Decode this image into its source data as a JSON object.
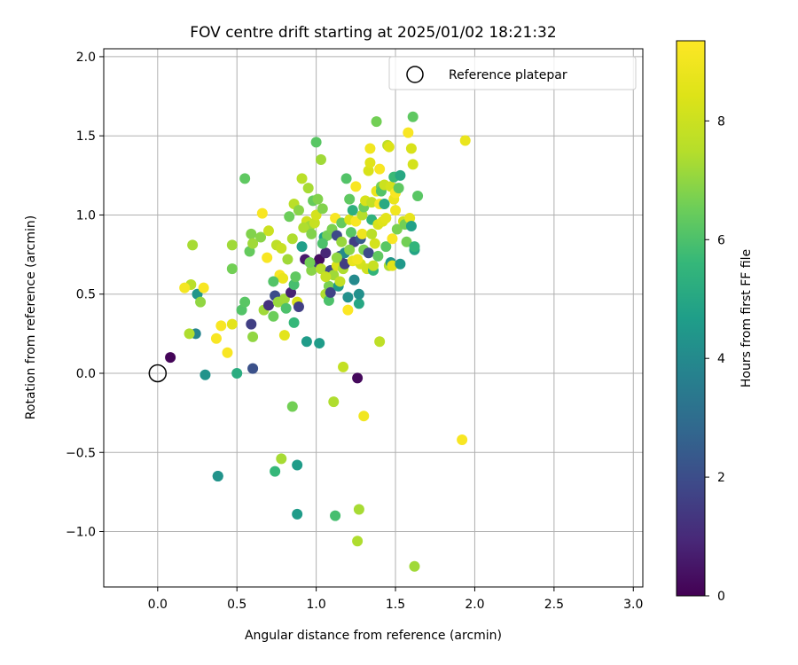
{
  "chart_data": {
    "type": "scatter",
    "title": "FOV centre drift starting at 2025/01/02 18:21:32",
    "xlabel": "Angular distance from reference (arcmin)",
    "ylabel": "Rotation from reference (arcmin)",
    "xlim": [
      -0.34,
      3.06
    ],
    "ylim": [
      -1.35,
      2.05
    ],
    "xticks": [
      0.0,
      0.5,
      1.0,
      1.5,
      2.0,
      2.5,
      3.0
    ],
    "xtick_labels": [
      "0.0",
      "0.5",
      "1.0",
      "1.5",
      "2.0",
      "2.5",
      "3.0"
    ],
    "yticks": [
      -1.0,
      -0.5,
      0.0,
      0.5,
      1.0,
      1.5,
      2.0
    ],
    "ytick_labels": [
      "−1.0",
      "−0.5",
      "0.0",
      "0.5",
      "1.0",
      "1.5",
      "2.0"
    ],
    "grid": true,
    "legend": {
      "placement": "top-right",
      "entries": [
        "Reference platepar"
      ]
    },
    "reference_point": {
      "x": 0.0,
      "y": 0.0
    },
    "colorbar": {
      "label": "Hours from first FF file",
      "colormap": "viridis",
      "range": [
        0,
        9.35
      ],
      "ticks": [
        0,
        2,
        4,
        6,
        8
      ],
      "tick_labels": [
        "0",
        "2",
        "4",
        "6",
        "8"
      ]
    },
    "points": [
      {
        "x": 0.08,
        "y": 0.1,
        "c": 0.1
      },
      {
        "x": 0.24,
        "y": 0.25,
        "c": 3.8
      },
      {
        "x": 0.3,
        "y": -0.01,
        "c": 4.3
      },
      {
        "x": 0.25,
        "y": 0.5,
        "c": 4.4
      },
      {
        "x": 0.38,
        "y": -0.65,
        "c": 4.6
      },
      {
        "x": 0.5,
        "y": 0.0,
        "c": 5.2
      },
      {
        "x": 0.6,
        "y": 0.03,
        "c": 2.1
      },
      {
        "x": 0.59,
        "y": 0.31,
        "c": 1.6
      },
      {
        "x": 0.2,
        "y": 0.25,
        "c": 7.4
      },
      {
        "x": 0.21,
        "y": 0.56,
        "c": 7.6
      },
      {
        "x": 0.22,
        "y": 0.81,
        "c": 7.3
      },
      {
        "x": 0.27,
        "y": 0.45,
        "c": 7.0
      },
      {
        "x": 0.29,
        "y": 0.54,
        "c": 9.2
      },
      {
        "x": 0.17,
        "y": 0.54,
        "c": 9.1
      },
      {
        "x": 0.37,
        "y": 0.22,
        "c": 9.2
      },
      {
        "x": 0.4,
        "y": 0.3,
        "c": 9.2
      },
      {
        "x": 0.44,
        "y": 0.13,
        "c": 9.2
      },
      {
        "x": 0.47,
        "y": 0.31,
        "c": 8.6
      },
      {
        "x": 0.47,
        "y": 0.66,
        "c": 6.6
      },
      {
        "x": 0.47,
        "y": 0.81,
        "c": 7.2
      },
      {
        "x": 0.53,
        "y": 0.4,
        "c": 6.1
      },
      {
        "x": 0.55,
        "y": 0.45,
        "c": 6.2
      },
      {
        "x": 0.55,
        "y": 1.23,
        "c": 6.3
      },
      {
        "x": 0.58,
        "y": 0.77,
        "c": 6.4
      },
      {
        "x": 0.59,
        "y": 0.88,
        "c": 6.8
      },
      {
        "x": 0.6,
        "y": 0.23,
        "c": 7.0
      },
      {
        "x": 0.6,
        "y": 0.82,
        "c": 7.2
      },
      {
        "x": 0.65,
        "y": 0.86,
        "c": 6.9
      },
      {
        "x": 0.66,
        "y": 1.01,
        "c": 9.2
      },
      {
        "x": 0.67,
        "y": 0.4,
        "c": 7.2
      },
      {
        "x": 0.69,
        "y": 0.73,
        "c": 9.2
      },
      {
        "x": 0.7,
        "y": 0.9,
        "c": 8.0
      },
      {
        "x": 0.7,
        "y": 0.43,
        "c": 1.2
      },
      {
        "x": 0.73,
        "y": 0.36,
        "c": 6.5
      },
      {
        "x": 0.74,
        "y": 0.49,
        "c": 2.0
      },
      {
        "x": 0.75,
        "y": 0.81,
        "c": 7.7
      },
      {
        "x": 0.76,
        "y": 0.45,
        "c": 7.1
      },
      {
        "x": 0.77,
        "y": 0.62,
        "c": 9.2
      },
      {
        "x": 0.78,
        "y": 0.79,
        "c": 7.9
      },
      {
        "x": 0.79,
        "y": 0.6,
        "c": 8.8
      },
      {
        "x": 0.8,
        "y": 0.24,
        "c": 8.6
      },
      {
        "x": 0.8,
        "y": 0.47,
        "c": 7.2
      },
      {
        "x": 0.81,
        "y": 0.41,
        "c": 6.0
      },
      {
        "x": 0.82,
        "y": 0.72,
        "c": 7.2
      },
      {
        "x": 0.83,
        "y": 0.99,
        "c": 6.5
      },
      {
        "x": 0.84,
        "y": 0.51,
        "c": 0.8
      },
      {
        "x": 0.85,
        "y": 0.85,
        "c": 7.4
      },
      {
        "x": 0.86,
        "y": 0.56,
        "c": 5.9
      },
      {
        "x": 0.86,
        "y": 0.32,
        "c": 5.6
      },
      {
        "x": 0.86,
        "y": 1.07,
        "c": 7.6
      },
      {
        "x": 0.87,
        "y": 0.61,
        "c": 6.3
      },
      {
        "x": 0.88,
        "y": 0.45,
        "c": 8.3
      },
      {
        "x": 0.89,
        "y": 0.42,
        "c": 1.6
      },
      {
        "x": 0.89,
        "y": 1.03,
        "c": 6.9
      },
      {
        "x": 0.91,
        "y": 0.8,
        "c": 4.7
      },
      {
        "x": 0.91,
        "y": 1.23,
        "c": 7.6
      },
      {
        "x": 0.93,
        "y": 0.72,
        "c": 0.6
      },
      {
        "x": 0.94,
        "y": 0.96,
        "c": 8.1
      },
      {
        "x": 0.94,
        "y": 0.2,
        "c": 4.6
      },
      {
        "x": 0.95,
        "y": 1.17,
        "c": 7.3
      },
      {
        "x": 0.96,
        "y": 0.93,
        "c": 7.2
      },
      {
        "x": 0.97,
        "y": 0.65,
        "c": 6.9
      },
      {
        "x": 0.98,
        "y": 1.09,
        "c": 6.4
      },
      {
        "x": 0.99,
        "y": 0.95,
        "c": 7.9
      },
      {
        "x": 1.0,
        "y": 1.46,
        "c": 6.2
      },
      {
        "x": 1.0,
        "y": 1.0,
        "c": 8.2
      },
      {
        "x": 1.01,
        "y": 0.7,
        "c": 1.5
      },
      {
        "x": 1.01,
        "y": 1.1,
        "c": 6.8
      },
      {
        "x": 1.02,
        "y": 0.72,
        "c": 0.3
      },
      {
        "x": 1.02,
        "y": 0.19,
        "c": 4.6
      },
      {
        "x": 1.03,
        "y": 1.35,
        "c": 7.2
      },
      {
        "x": 1.03,
        "y": 0.66,
        "c": 7.5
      },
      {
        "x": 1.04,
        "y": 1.04,
        "c": 6.8
      },
      {
        "x": 1.05,
        "y": 0.86,
        "c": 4.8
      },
      {
        "x": 1.06,
        "y": 0.76,
        "c": 0.9
      },
      {
        "x": 1.06,
        "y": 0.5,
        "c": 7.4
      },
      {
        "x": 1.07,
        "y": 0.87,
        "c": 6.6
      },
      {
        "x": 1.08,
        "y": 0.46,
        "c": 6.0
      },
      {
        "x": 1.08,
        "y": 0.55,
        "c": 6.7
      },
      {
        "x": 1.09,
        "y": 0.65,
        "c": 1.8
      },
      {
        "x": 1.09,
        "y": 0.51,
        "c": 1.7
      },
      {
        "x": 1.1,
        "y": 0.91,
        "c": 6.7
      },
      {
        "x": 1.11,
        "y": -0.18,
        "c": 7.4
      },
      {
        "x": 1.11,
        "y": 0.62,
        "c": 7.2
      },
      {
        "x": 1.12,
        "y": -0.9,
        "c": 5.9
      },
      {
        "x": 1.12,
        "y": 0.98,
        "c": 9.2
      },
      {
        "x": 1.13,
        "y": 0.68,
        "c": 8.3
      },
      {
        "x": 1.13,
        "y": 0.87,
        "c": 1.9
      },
      {
        "x": 1.14,
        "y": 0.55,
        "c": 4.5
      },
      {
        "x": 1.15,
        "y": 0.74,
        "c": 2.1
      },
      {
        "x": 1.15,
        "y": 0.58,
        "c": 7.8
      },
      {
        "x": 1.16,
        "y": 0.95,
        "c": 6.4
      },
      {
        "x": 1.17,
        "y": 0.04,
        "c": 7.8
      },
      {
        "x": 1.17,
        "y": 0.66,
        "c": 7.4
      },
      {
        "x": 1.18,
        "y": 0.69,
        "c": 1.5
      },
      {
        "x": 1.18,
        "y": 0.76,
        "c": 4.0
      },
      {
        "x": 1.19,
        "y": 1.23,
        "c": 6.1
      },
      {
        "x": 1.2,
        "y": 0.48,
        "c": 4.2
      },
      {
        "x": 1.2,
        "y": 0.4,
        "c": 9.3
      },
      {
        "x": 1.21,
        "y": 0.97,
        "c": 8.4
      },
      {
        "x": 1.21,
        "y": 1.1,
        "c": 6.3
      },
      {
        "x": 1.22,
        "y": 0.89,
        "c": 6.2
      },
      {
        "x": 1.23,
        "y": 0.71,
        "c": 8.8
      },
      {
        "x": 1.23,
        "y": 1.03,
        "c": 5.3
      },
      {
        "x": 1.24,
        "y": 0.83,
        "c": 1.6
      },
      {
        "x": 1.24,
        "y": 0.59,
        "c": 4.0
      },
      {
        "x": 1.25,
        "y": 0.96,
        "c": 9.2
      },
      {
        "x": 1.25,
        "y": 1.18,
        "c": 9.2
      },
      {
        "x": 1.26,
        "y": -0.03,
        "c": 0.2
      },
      {
        "x": 1.26,
        "y": -1.06,
        "c": 7.4
      },
      {
        "x": 1.27,
        "y": -0.86,
        "c": 7.3
      },
      {
        "x": 1.27,
        "y": 0.44,
        "c": 5.0
      },
      {
        "x": 1.27,
        "y": 0.5,
        "c": 4.2
      },
      {
        "x": 1.28,
        "y": 0.69,
        "c": 8.2
      },
      {
        "x": 1.28,
        "y": 0.85,
        "c": 2.4
      },
      {
        "x": 1.29,
        "y": 1.0,
        "c": 7.5
      },
      {
        "x": 1.29,
        "y": 0.88,
        "c": 8.9
      },
      {
        "x": 1.3,
        "y": -0.27,
        "c": 9.0
      },
      {
        "x": 1.3,
        "y": 1.05,
        "c": 6.5
      },
      {
        "x": 1.3,
        "y": 0.78,
        "c": 6.7
      },
      {
        "x": 1.31,
        "y": 1.09,
        "c": 8.3
      },
      {
        "x": 1.32,
        "y": 0.66,
        "c": 8.1
      },
      {
        "x": 1.33,
        "y": 0.76,
        "c": 1.9
      },
      {
        "x": 1.33,
        "y": 1.28,
        "c": 8.3
      },
      {
        "x": 1.34,
        "y": 1.42,
        "c": 9.0
      },
      {
        "x": 1.34,
        "y": 1.33,
        "c": 8.5
      },
      {
        "x": 1.35,
        "y": 0.97,
        "c": 5.4
      },
      {
        "x": 1.35,
        "y": 1.08,
        "c": 7.8
      },
      {
        "x": 1.36,
        "y": 0.65,
        "c": 5.5
      },
      {
        "x": 1.36,
        "y": 0.68,
        "c": 7.9
      },
      {
        "x": 1.37,
        "y": 0.82,
        "c": 8.2
      },
      {
        "x": 1.38,
        "y": 1.15,
        "c": 8.8
      },
      {
        "x": 1.38,
        "y": 1.59,
        "c": 6.6
      },
      {
        "x": 1.39,
        "y": 0.94,
        "c": 8.3
      },
      {
        "x": 1.39,
        "y": 0.74,
        "c": 6.3
      },
      {
        "x": 1.4,
        "y": 1.29,
        "c": 9.2
      },
      {
        "x": 1.4,
        "y": 1.07,
        "c": 9.2
      },
      {
        "x": 1.4,
        "y": 0.2,
        "c": 7.7
      },
      {
        "x": 1.41,
        "y": 1.18,
        "c": 6.6
      },
      {
        "x": 1.41,
        "y": 1.15,
        "c": 6.1
      },
      {
        "x": 1.42,
        "y": 0.96,
        "c": 8.5
      },
      {
        "x": 1.43,
        "y": 1.07,
        "c": 5.1
      },
      {
        "x": 1.43,
        "y": 1.19,
        "c": 8.0
      },
      {
        "x": 1.44,
        "y": 0.8,
        "c": 6.2
      },
      {
        "x": 1.45,
        "y": 1.44,
        "c": 7.7
      },
      {
        "x": 1.46,
        "y": 0.68,
        "c": 7.4
      },
      {
        "x": 1.46,
        "y": 1.43,
        "c": 8.4
      },
      {
        "x": 1.47,
        "y": 1.18,
        "c": 8.2
      },
      {
        "x": 1.47,
        "y": 0.7,
        "c": 4.4
      },
      {
        "x": 1.48,
        "y": 0.85,
        "c": 9.2
      },
      {
        "x": 1.48,
        "y": 0.68,
        "c": 8.5
      },
      {
        "x": 1.49,
        "y": 1.24,
        "c": 5.7
      },
      {
        "x": 1.49,
        "y": 1.1,
        "c": 8.8
      },
      {
        "x": 1.5,
        "y": 1.14,
        "c": 9.2
      },
      {
        "x": 1.5,
        "y": 1.03,
        "c": 9.0
      },
      {
        "x": 1.51,
        "y": 0.91,
        "c": 6.7
      },
      {
        "x": 1.52,
        "y": 1.17,
        "c": 6.3
      },
      {
        "x": 1.53,
        "y": 0.69,
        "c": 4.5
      },
      {
        "x": 1.53,
        "y": 1.25,
        "c": 5.0
      },
      {
        "x": 1.55,
        "y": 0.96,
        "c": 8.1
      },
      {
        "x": 1.56,
        "y": 0.94,
        "c": 6.6
      },
      {
        "x": 1.57,
        "y": 0.83,
        "c": 6.6
      },
      {
        "x": 1.58,
        "y": 1.52,
        "c": 9.2
      },
      {
        "x": 1.59,
        "y": 0.98,
        "c": 8.7
      },
      {
        "x": 1.6,
        "y": 1.42,
        "c": 8.3
      },
      {
        "x": 1.6,
        "y": 0.93,
        "c": 4.8
      },
      {
        "x": 1.61,
        "y": 1.32,
        "c": 8.2
      },
      {
        "x": 1.61,
        "y": 1.62,
        "c": 6.3
      },
      {
        "x": 1.62,
        "y": 0.78,
        "c": 4.9
      },
      {
        "x": 1.62,
        "y": 0.8,
        "c": 5.5
      },
      {
        "x": 1.62,
        "y": -1.22,
        "c": 7.2
      },
      {
        "x": 1.64,
        "y": 1.12,
        "c": 6.2
      },
      {
        "x": 1.92,
        "y": -0.42,
        "c": 9.2
      },
      {
        "x": 1.94,
        "y": 1.47,
        "c": 8.8
      },
      {
        "x": 0.38,
        "y": -0.65,
        "c": 4.3
      },
      {
        "x": 0.74,
        "y": -0.62,
        "c": 5.6
      },
      {
        "x": 0.78,
        "y": -0.54,
        "c": 7.3
      },
      {
        "x": 0.85,
        "y": -0.21,
        "c": 6.6
      },
      {
        "x": 0.88,
        "y": -0.58,
        "c": 4.6
      },
      {
        "x": 0.88,
        "y": -0.89,
        "c": 4.6
      },
      {
        "x": 0.73,
        "y": 0.58,
        "c": 6.1
      },
      {
        "x": 0.92,
        "y": 0.92,
        "c": 7.4
      },
      {
        "x": 0.97,
        "y": 0.88,
        "c": 6.8
      },
      {
        "x": 1.04,
        "y": 0.82,
        "c": 6.0
      },
      {
        "x": 1.16,
        "y": 0.83,
        "c": 7.1
      },
      {
        "x": 1.21,
        "y": 0.78,
        "c": 6.9
      },
      {
        "x": 1.35,
        "y": 0.88,
        "c": 7.6
      },
      {
        "x": 1.26,
        "y": 0.72,
        "c": 9.0
      },
      {
        "x": 0.96,
        "y": 0.7,
        "c": 6.6
      },
      {
        "x": 1.06,
        "y": 0.61,
        "c": 7.9
      },
      {
        "x": 1.13,
        "y": 0.73,
        "c": 7.0
      },
      {
        "x": 1.44,
        "y": 0.98,
        "c": 8.6
      }
    ]
  }
}
